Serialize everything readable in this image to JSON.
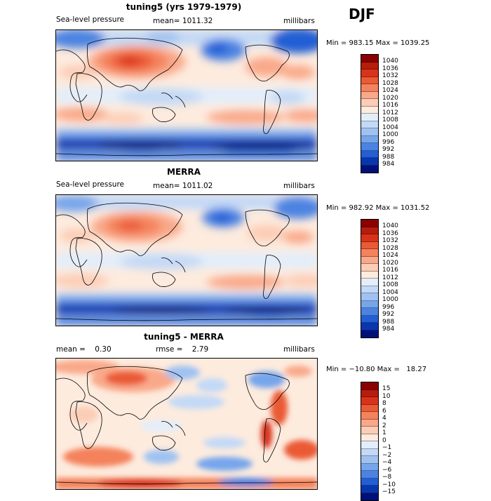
{
  "season": "DJF",
  "panels": [
    {
      "title": "tuning5 (yrs 1979-1979)",
      "left_text": "Sea-level pressure",
      "mid_text": "mean= 1011.32",
      "units": "millibars",
      "minmax": "Min = 983.15 Max = 1039.25",
      "colorbar": {
        "labels": [
          "1040",
          "1036",
          "1032",
          "1028",
          "1024",
          "1020",
          "1016",
          "1012",
          "1008",
          "1004",
          "1000",
          "996",
          "992",
          "988",
          "984"
        ],
        "colors": [
          "#8b0000",
          "#b81c0c",
          "#d8331a",
          "#ea5a34",
          "#f4825c",
          "#f9a98a",
          "#fccdb6",
          "#fdebde",
          "#e2eefb",
          "#c2d9f7",
          "#9fc2f2",
          "#76a5ec",
          "#4b83e2",
          "#245ed4",
          "#0a36ad",
          "#00107a"
        ]
      }
    },
    {
      "title": "MERRA",
      "left_text": "Sea-level pressure",
      "mid_text": "mean= 1011.02",
      "units": "millibars",
      "minmax": "Min = 982.92 Max = 1031.52",
      "colorbar": {
        "labels": [
          "1040",
          "1036",
          "1032",
          "1028",
          "1024",
          "1020",
          "1016",
          "1012",
          "1008",
          "1004",
          "1000",
          "996",
          "992",
          "988",
          "984"
        ],
        "colors": [
          "#8b0000",
          "#b81c0c",
          "#d8331a",
          "#ea5a34",
          "#f4825c",
          "#f9a98a",
          "#fccdb6",
          "#fdebde",
          "#e2eefb",
          "#c2d9f7",
          "#9fc2f2",
          "#76a5ec",
          "#4b83e2",
          "#245ed4",
          "#0a36ad",
          "#00107a"
        ]
      }
    },
    {
      "title": "tuning5 - MERRA",
      "left_text": "mean =    0.30",
      "mid_text": "rmse =    2.79",
      "units": "millibars",
      "minmax": "Min = −10.80 Max =   18.27",
      "colorbar": {
        "labels": [
          "15",
          "10",
          "8",
          "6",
          "4",
          "2",
          "1",
          "0",
          "−1",
          "−2",
          "−4",
          "−6",
          "−8",
          "−10",
          "−15"
        ],
        "colors": [
          "#8b0000",
          "#b81c0c",
          "#d8331a",
          "#ea5a34",
          "#f4825c",
          "#f9a98a",
          "#fccdb6",
          "#fdebde",
          "#e2eefb",
          "#c2d9f7",
          "#9fc2f2",
          "#76a5ec",
          "#4b83e2",
          "#245ed4",
          "#0a36ad",
          "#00107a"
        ]
      }
    }
  ]
}
